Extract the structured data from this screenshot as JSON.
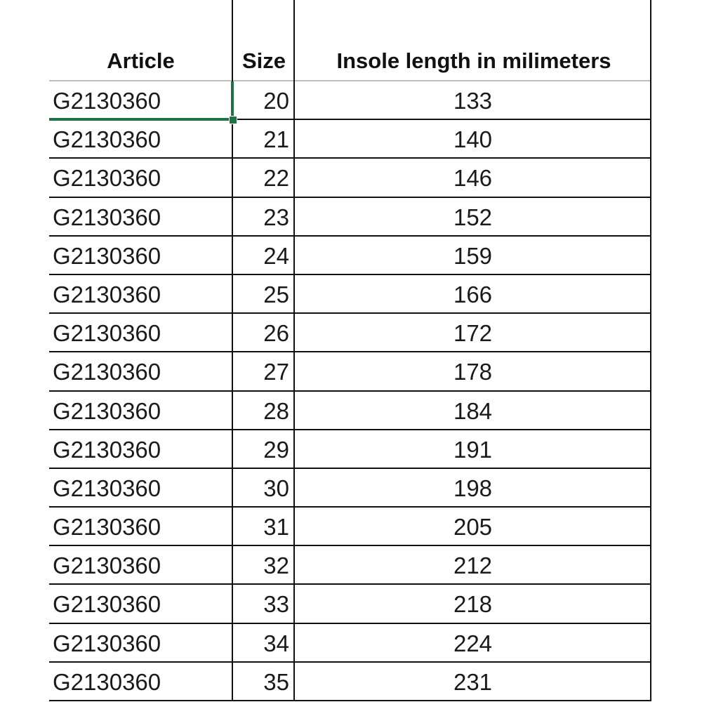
{
  "headers": {
    "article": "Article",
    "size": "Size",
    "length": "Insole length in milimeters"
  },
  "selection_color": "#217346",
  "selected_cell": "G2130360 (row 1, Article)",
  "rows": [
    {
      "article": "G2130360",
      "size": "20",
      "length": "133"
    },
    {
      "article": "G2130360",
      "size": "21",
      "length": "140"
    },
    {
      "article": "G2130360",
      "size": "22",
      "length": "146"
    },
    {
      "article": "G2130360",
      "size": "23",
      "length": "152"
    },
    {
      "article": "G2130360",
      "size": "24",
      "length": "159"
    },
    {
      "article": "G2130360",
      "size": "25",
      "length": "166"
    },
    {
      "article": "G2130360",
      "size": "26",
      "length": "172"
    },
    {
      "article": "G2130360",
      "size": "27",
      "length": "178"
    },
    {
      "article": "G2130360",
      "size": "28",
      "length": "184"
    },
    {
      "article": "G2130360",
      "size": "29",
      "length": "191"
    },
    {
      "article": "G2130360",
      "size": "30",
      "length": "198"
    },
    {
      "article": "G2130360",
      "size": "31",
      "length": "205"
    },
    {
      "article": "G2130360",
      "size": "32",
      "length": "212"
    },
    {
      "article": "G2130360",
      "size": "33",
      "length": "218"
    },
    {
      "article": "G2130360",
      "size": "34",
      "length": "224"
    },
    {
      "article": "G2130360",
      "size": "35",
      "length": "231"
    }
  ]
}
